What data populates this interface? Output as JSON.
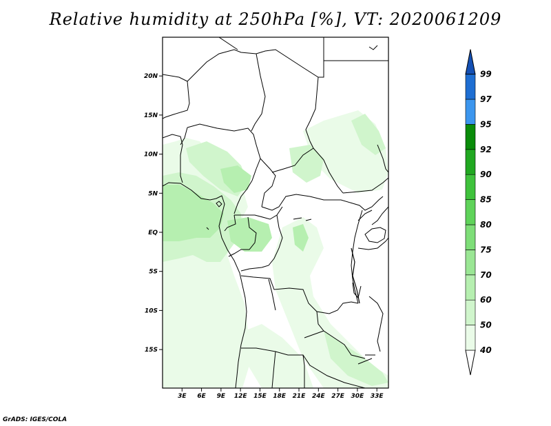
{
  "title": "Relative humidity at 250hPa [%], VT: 2020061209",
  "credit": "GrADS: IGES/COLA",
  "map": {
    "lat_range": [
      -20,
      24
    ],
    "lon_range": [
      0,
      35
    ],
    "lat_ticks": [
      "20N",
      "15N",
      "10N",
      "5N",
      "EQ",
      "5S",
      "10S",
      "15S"
    ],
    "lon_ticks": [
      "3E",
      "6E",
      "9E",
      "12E",
      "15E",
      "18E",
      "21E",
      "24E",
      "27E",
      "30E",
      "33E"
    ]
  },
  "colorbar": {
    "labels": [
      "40",
      "50",
      "60",
      "70",
      "75",
      "80",
      "85",
      "90",
      "92",
      "95",
      "97",
      "99"
    ],
    "colors": [
      "#ffffff",
      "#eafbe8",
      "#d0f5cc",
      "#b6efb0",
      "#9ae694",
      "#7ede78",
      "#5fd35a",
      "#3fc23c",
      "#21a821",
      "#0a8c0a",
      "#3c96ee",
      "#1e6ed2",
      "#1450b4"
    ]
  }
}
